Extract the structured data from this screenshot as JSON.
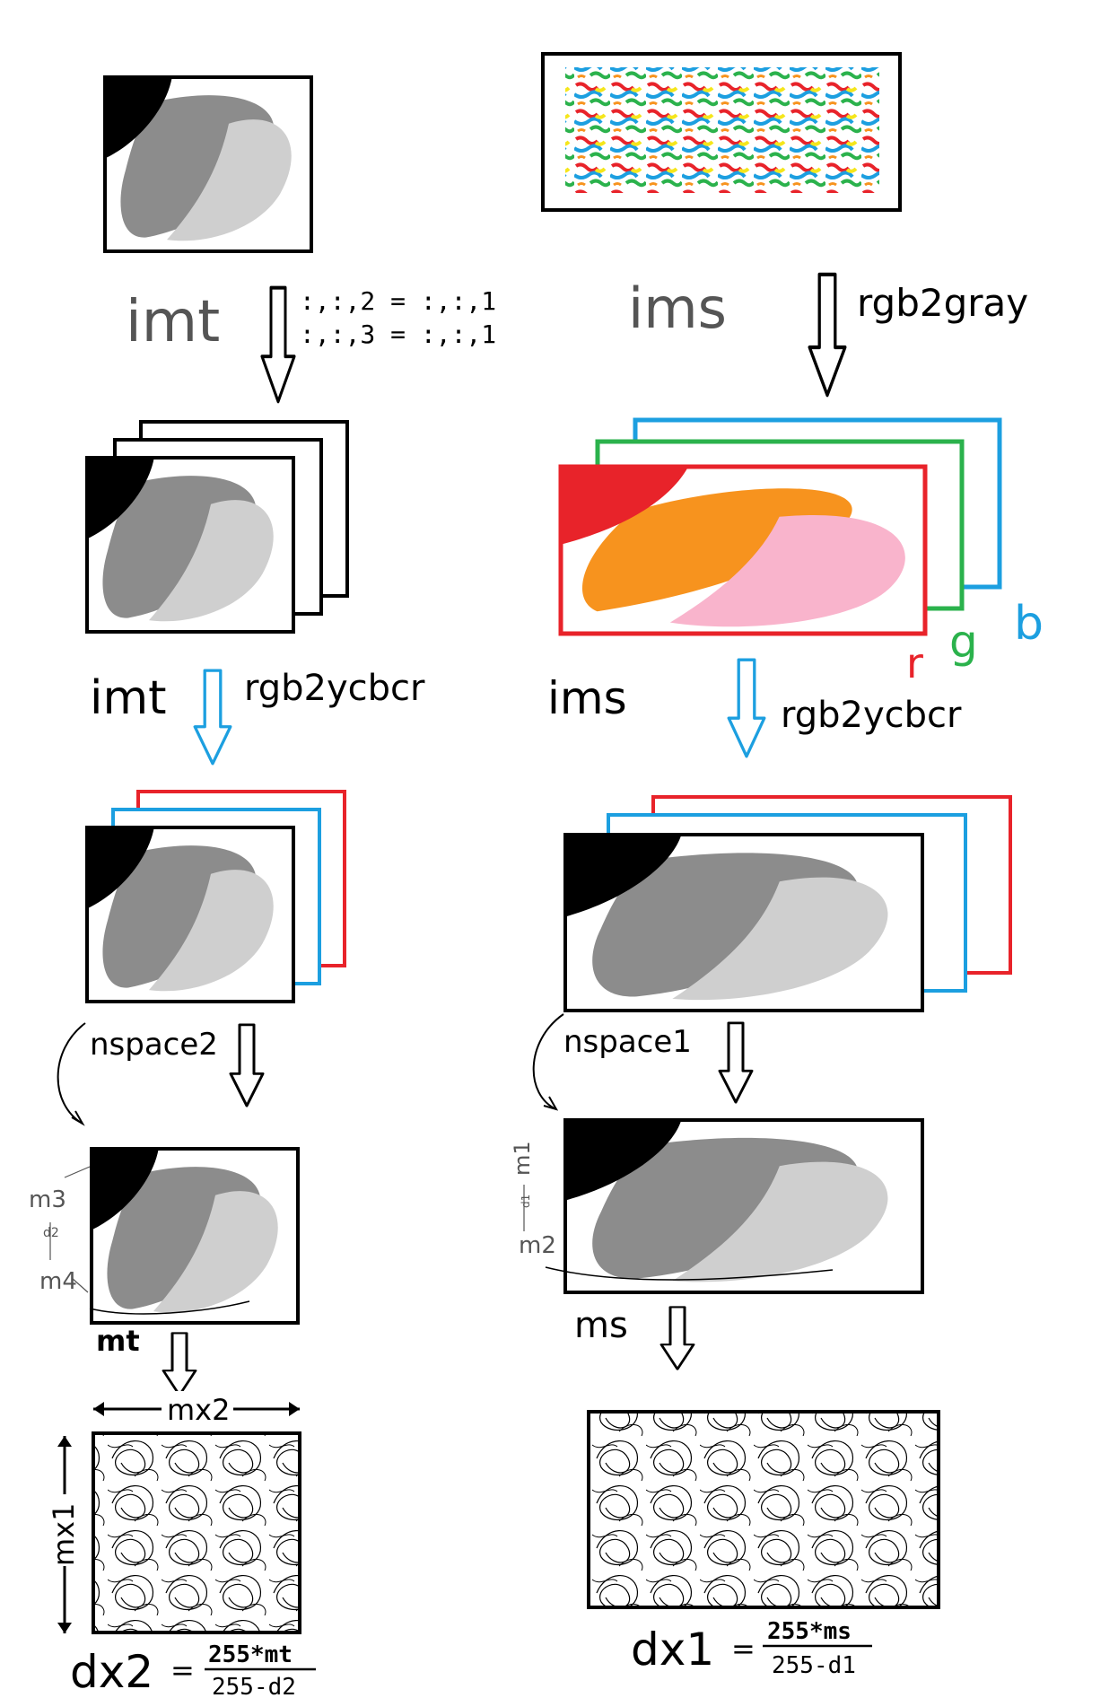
{
  "left": {
    "label_top": "imt",
    "eq1": ":,:,2 = :,:,1",
    "eq2": ":,:,3 = :,:,1",
    "label_mid": "imt",
    "op": "rgb2ycbcr",
    "nspace": "nspace2",
    "m3": "m3",
    "d2": "d2",
    "m4": "m4",
    "mt": "mt",
    "mx2": "mx2",
    "mx1": "mx1",
    "dx": "dx2",
    "eq_sign": "=",
    "num": "255*mt",
    "den": "255-d2"
  },
  "right": {
    "label_top": "ims",
    "op_gray": "rgb2gray",
    "r": "r",
    "g": "g",
    "b": "b",
    "label_mid": "ims",
    "op": "rgb2ycbcr",
    "nspace": "nspace1",
    "m1": "m1",
    "d1": "d1",
    "m2": "m2",
    "ms": "ms",
    "dx": "dx1",
    "eq_sign": "=",
    "num": "255*ms",
    "den": "255-d1"
  },
  "colors": {
    "black": "#000000",
    "dark_gray": "#8c8c8c",
    "light_gray": "#cfcfcf",
    "red": "#e8232a",
    "green": "#2bb24c",
    "blue": "#1c9fe0",
    "orange": "#f7931e",
    "pink": "#f9b4cc",
    "yellow": "#f5e61c"
  }
}
